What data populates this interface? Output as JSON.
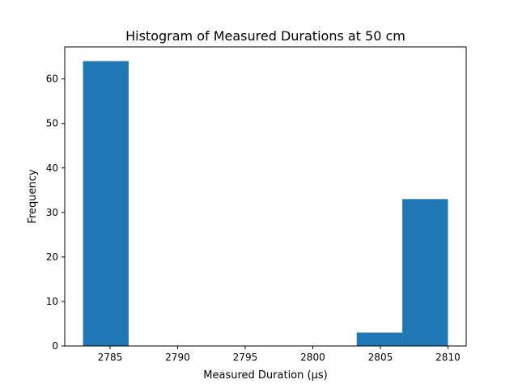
{
  "chart_data": {
    "type": "bar",
    "title": "Histogram of Measured Durations at 50 cm",
    "xlabel": "Measured Duration (µs)",
    "ylabel": "Frequency",
    "xlim": [
      2781.65,
      2811.35
    ],
    "ylim": [
      0,
      67.2
    ],
    "x_ticks": [
      2785,
      2790,
      2795,
      2800,
      2805,
      2810
    ],
    "y_ticks": [
      0,
      10,
      20,
      30,
      40,
      50,
      60
    ],
    "bins": [
      {
        "x0": 2783.0,
        "x1": 2786.375,
        "count": 64
      },
      {
        "x0": 2786.375,
        "x1": 2789.75,
        "count": 0
      },
      {
        "x0": 2789.75,
        "x1": 2793.125,
        "count": 0
      },
      {
        "x0": 2793.125,
        "x1": 2796.5,
        "count": 0
      },
      {
        "x0": 2796.5,
        "x1": 2799.875,
        "count": 0
      },
      {
        "x0": 2799.875,
        "x1": 2803.25,
        "count": 0
      },
      {
        "x0": 2803.25,
        "x1": 2806.625,
        "count": 3
      },
      {
        "x0": 2806.625,
        "x1": 2810.0,
        "count": 33
      }
    ],
    "bar_color": "#1f77b4",
    "grid": false,
    "legend": "none"
  }
}
